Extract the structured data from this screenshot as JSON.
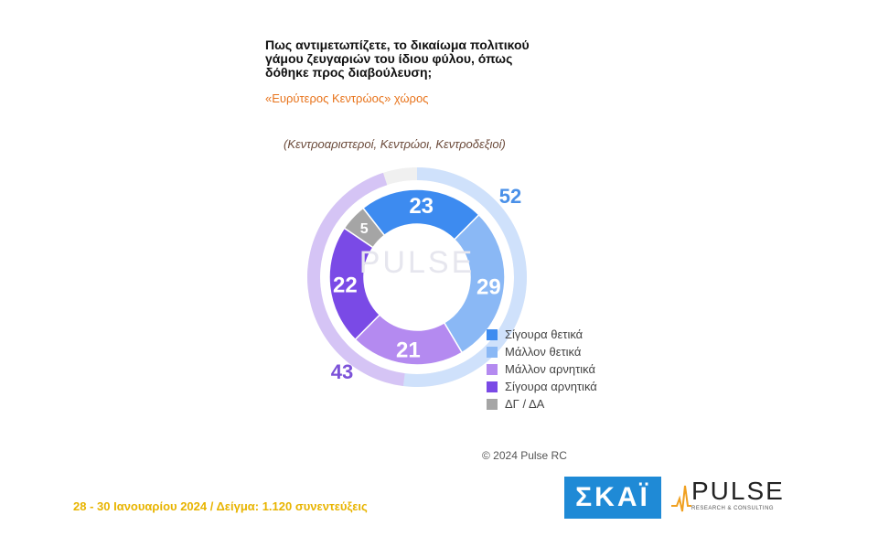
{
  "title_lines": [
    "Πως αντιμετωπίζετε, το δικαίωμα πολιτικού",
    "γάμου ζευγαριών του ίδιου φύλου, όπως",
    "δόθηκε προς διαβούλευση;"
  ],
  "subtitle": "«Ευρύτερος Κεντρώος» χώρος",
  "group_note": "(Κεντροαριστεροί, Κεντρώοι, Κεντροδεξιοί)",
  "chart_data": {
    "type": "pie",
    "style": "donut",
    "categories": [
      "Σίγουρα θετικά",
      "Μάλλον θετικά",
      "Μάλλον αρνητικά",
      "Σίγουρα αρνητικά",
      "ΔΓ / ΔΑ"
    ],
    "values": [
      23,
      29,
      21,
      22,
      5
    ],
    "colors": [
      "#3d8bf0",
      "#8ab8f5",
      "#b48af0",
      "#7a4ae6",
      "#a5a5a5"
    ],
    "groups": [
      {
        "label": "52",
        "value": 52,
        "color": "#cfe1fb",
        "label_color": "#4a90e8"
      },
      {
        "label": "43",
        "value": 43,
        "color": "#d5c4f5",
        "label_color": "#7c52d8"
      }
    ],
    "legend_position": "right"
  },
  "watermark": "PULSE",
  "copyright": "© 2024 Pulse RC",
  "footer": "28 - 30  Ιανουαρίου  2024  /  Δείγμα:  1.120 συνεντεύξεις",
  "logos": {
    "skai": "ΣΚΑΪ",
    "pulse": "PULSE",
    "pulse_sub": "RESEARCH & CONSULTING"
  }
}
